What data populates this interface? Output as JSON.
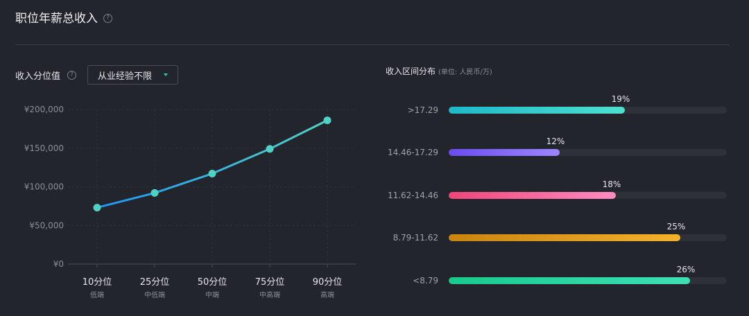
{
  "header": {
    "title": "职位年薪总收入",
    "help_icon": "?"
  },
  "percentile": {
    "label": "收入分位值",
    "help_icon": "?",
    "select_value": "从业经验不限"
  },
  "chart_data": [
    {
      "type": "line",
      "categories": [
        "10分位",
        "25分位",
        "50分位",
        "75分位",
        "90分位"
      ],
      "sublabels": [
        "低端",
        "中低端",
        "中端",
        "中高端",
        "高端"
      ],
      "values": [
        73000,
        92000,
        117000,
        149000,
        186000
      ],
      "ylim": [
        0,
        200000
      ],
      "yticks": [
        "¥200,000",
        "¥150,000",
        "¥100,000",
        "¥50,000",
        "¥0"
      ],
      "colors": {
        "line_start": "#2196f3",
        "line_end": "#4fd1c5",
        "point": "#4fd1c5"
      }
    },
    {
      "type": "bar",
      "title": "收入区间分布",
      "unit": "(单位: 人民币/万)",
      "categories": [
        ">17.29",
        "14.46-17.29",
        "11.62-14.46",
        "8.79-11.62",
        "<8.79"
      ],
      "values": [
        19,
        12,
        18,
        25,
        26
      ],
      "value_labels": [
        "19%",
        "12%",
        "18%",
        "25%",
        "26%"
      ],
      "colors": [
        [
          "#1fb8c8",
          "#4fe0d0"
        ],
        [
          "#6a4cf0",
          "#9d86ff"
        ],
        [
          "#f0457a",
          "#ff8cc0"
        ],
        [
          "#c98410",
          "#f5b02c"
        ],
        [
          "#18c98c",
          "#3ee0b4"
        ]
      ]
    }
  ]
}
